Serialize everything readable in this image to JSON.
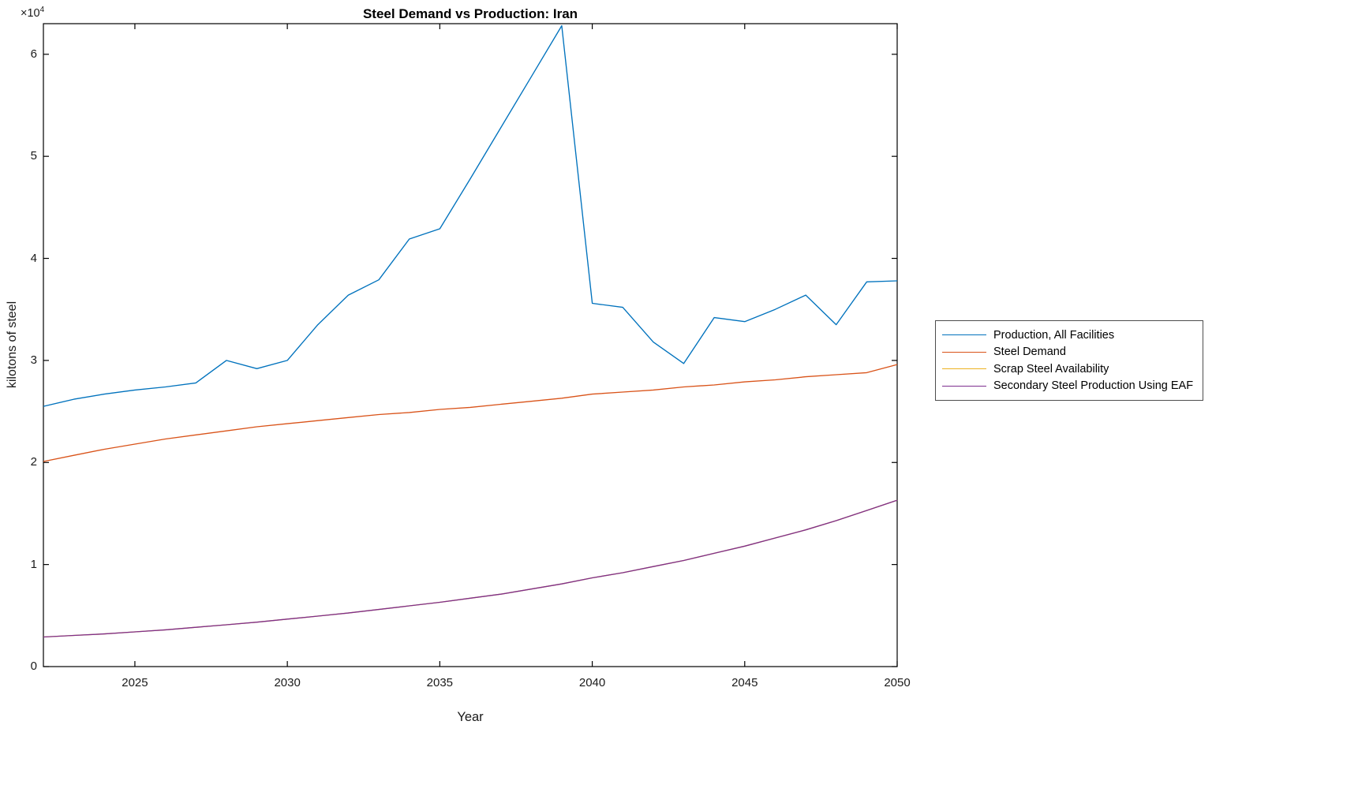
{
  "chart_data": {
    "type": "line",
    "title": "Steel Demand vs Production: Iran",
    "xlabel": "Year",
    "ylabel": "kilotons of steel",
    "y_multiplier": {
      "base": "×10",
      "exp": "4"
    },
    "xlim": [
      2022,
      2050
    ],
    "ylim": [
      0,
      63000
    ],
    "xticks": [
      2025,
      2030,
      2035,
      2040,
      2045,
      2050
    ],
    "xtick_labels": [
      "2025",
      "2030",
      "2035",
      "2040",
      "2045",
      "2050"
    ],
    "yticks": [
      0,
      10000,
      20000,
      30000,
      40000,
      50000,
      60000
    ],
    "ytick_labels": [
      "0",
      "1",
      "2",
      "3",
      "4",
      "5",
      "6"
    ],
    "grid": false,
    "legend_position": "right-outside",
    "x": [
      2022,
      2023,
      2024,
      2025,
      2026,
      2027,
      2028,
      2029,
      2030,
      2031,
      2032,
      2033,
      2034,
      2035,
      2036,
      2037,
      2038,
      2039,
      2040,
      2041,
      2042,
      2043,
      2044,
      2045,
      2046,
      2047,
      2048,
      2049,
      2050
    ],
    "series": [
      {
        "name": "Production, All Facilities",
        "color": "#0072BD",
        "values": [
          25500,
          26200,
          26700,
          27100,
          27400,
          27800,
          30000,
          29200,
          30000,
          33500,
          36400,
          37900,
          41900,
          42900,
          47800,
          52800,
          57800,
          62800,
          35600,
          35200,
          31800,
          29700,
          34200,
          33800,
          35000,
          36400,
          33500,
          37700,
          37800
        ]
      },
      {
        "name": "Steel Demand",
        "color": "#D95319",
        "values": [
          20100,
          20700,
          21300,
          21800,
          22300,
          22700,
          23100,
          23500,
          23800,
          24100,
          24400,
          24700,
          24900,
          25200,
          25400,
          25700,
          26000,
          26300,
          26700,
          26900,
          27100,
          27400,
          27600,
          27900,
          28100,
          28400,
          28600,
          28800,
          29600
        ]
      },
      {
        "name": "Scrap Steel Availability",
        "color": "#EDB120",
        "values": [
          2900,
          3050,
          3200,
          3400,
          3600,
          3850,
          4100,
          4350,
          4650,
          4950,
          5250,
          5600,
          5950,
          6300,
          6700,
          7100,
          7600,
          8100,
          8700,
          9200,
          9800,
          10400,
          11100,
          11800,
          12600,
          13400,
          14300,
          15300,
          16300
        ]
      },
      {
        "name": "Secondary Steel Production Using EAF",
        "color": "#7E2F8E",
        "values": [
          2900,
          3050,
          3200,
          3400,
          3600,
          3850,
          4100,
          4350,
          4650,
          4950,
          5250,
          5600,
          5950,
          6300,
          6700,
          7100,
          7600,
          8100,
          8700,
          9200,
          9800,
          10400,
          11100,
          11800,
          12600,
          13400,
          14300,
          15300,
          16300
        ]
      }
    ]
  }
}
